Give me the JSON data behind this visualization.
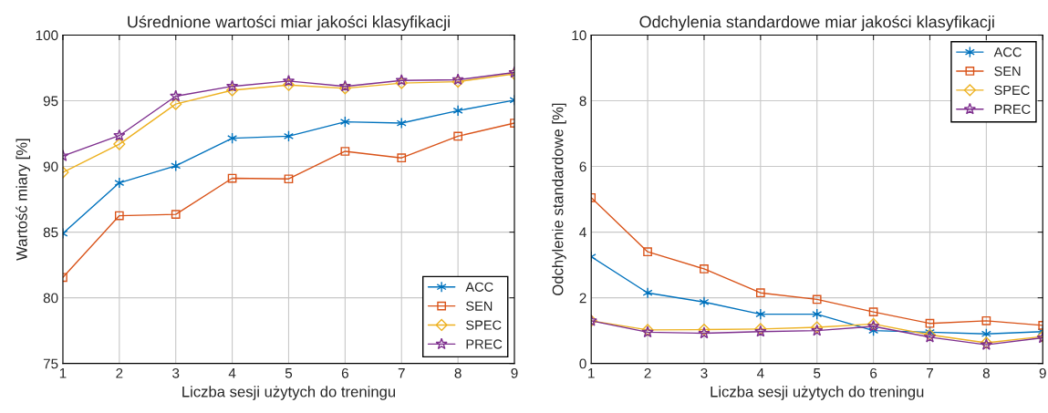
{
  "chart_data": [
    {
      "type": "line",
      "title": "Uśrednione wartości miar jakości klasyfikacji",
      "xlabel": "Liczba sesji użytych do treningu",
      "ylabel": "Wartość miary [%]",
      "x": [
        1,
        2,
        3,
        4,
        5,
        6,
        7,
        8,
        9
      ],
      "xlim": [
        1,
        9
      ],
      "xticks": [
        1,
        2,
        3,
        4,
        5,
        6,
        7,
        8,
        9
      ],
      "ylim": [
        75,
        100
      ],
      "yticks": [
        75,
        80,
        85,
        90,
        95,
        100
      ],
      "grid": true,
      "legend": "bottom right",
      "series": [
        {
          "name": "ACC",
          "color": "#0072bd",
          "marker": "cross",
          "values": [
            84.9,
            88.75,
            90.05,
            92.15,
            92.3,
            93.4,
            93.3,
            94.25,
            95.05
          ]
        },
        {
          "name": "SEN",
          "color": "#d95319",
          "marker": "square",
          "values": [
            81.55,
            86.25,
            86.35,
            89.1,
            89.05,
            91.15,
            90.65,
            92.3,
            93.3
          ]
        },
        {
          "name": "SPEC",
          "color": "#edb120",
          "marker": "diamond",
          "values": [
            89.55,
            91.7,
            94.75,
            95.8,
            96.2,
            95.95,
            96.35,
            96.45,
            97.05
          ]
        },
        {
          "name": "PREC",
          "color": "#7e2f8e",
          "marker": "star",
          "values": [
            90.8,
            92.35,
            95.35,
            96.1,
            96.5,
            96.1,
            96.55,
            96.6,
            97.15
          ]
        }
      ]
    },
    {
      "type": "line",
      "title": "Odchylenia standardowe miar jakości klasyfikacji",
      "xlabel": "Liczba sesji użytych do treningu",
      "ylabel": "Odchylenie standardowe [%]",
      "x": [
        1,
        2,
        3,
        4,
        5,
        6,
        7,
        8,
        9
      ],
      "xlim": [
        1,
        9
      ],
      "xticks": [
        1,
        2,
        3,
        4,
        5,
        6,
        7,
        8,
        9
      ],
      "ylim": [
        0,
        10
      ],
      "yticks": [
        0,
        2,
        4,
        6,
        8,
        10
      ],
      "grid": true,
      "legend": "top right",
      "series": [
        {
          "name": "ACC",
          "color": "#0072bd",
          "marker": "cross",
          "values": [
            3.25,
            2.15,
            1.87,
            1.5,
            1.5,
            1.0,
            0.95,
            0.9,
            0.97
          ]
        },
        {
          "name": "SEN",
          "color": "#d95319",
          "marker": "square",
          "values": [
            5.05,
            3.4,
            2.88,
            2.15,
            1.95,
            1.57,
            1.22,
            1.3,
            1.16
          ]
        },
        {
          "name": "SPEC",
          "color": "#edb120",
          "marker": "diamond",
          "values": [
            1.3,
            1.02,
            1.03,
            1.05,
            1.1,
            1.2,
            0.87,
            0.63,
            0.82
          ]
        },
        {
          "name": "PREC",
          "color": "#7e2f8e",
          "marker": "star",
          "values": [
            1.3,
            0.95,
            0.92,
            0.97,
            1.0,
            1.13,
            0.8,
            0.57,
            0.78
          ]
        }
      ]
    }
  ]
}
